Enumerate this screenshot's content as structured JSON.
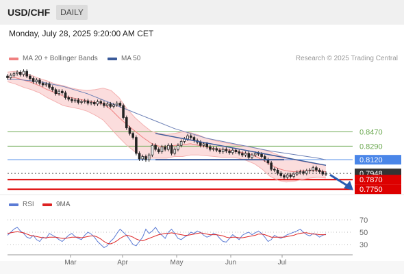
{
  "header": {
    "symbol": "USD/CHF",
    "timeframe": "DAILY"
  },
  "datetime": "Monday, July 28, 2025 9:20:00 AM CET",
  "legend": {
    "bb": {
      "label": "MA 20 + Bollinger Bands",
      "color": "#f08080"
    },
    "ma50": {
      "label": "MA 50",
      "color": "#3a5a9a"
    }
  },
  "attribution": "Research © 2025 Trading Central",
  "rsi_legend": {
    "rsi": {
      "label": "RSI",
      "color": "#5b7bd5"
    },
    "ma9": {
      "label": "9MA",
      "color": "#dd2222"
    }
  },
  "chart_data": [
    {
      "type": "line",
      "title": "",
      "x_ticks": [
        "Mar",
        "Apr",
        "May",
        "Jun",
        "Jul"
      ],
      "levels": [
        {
          "value": 0.847,
          "label": "0.8470",
          "style": "green-line",
          "color": "#6aa84f"
        },
        {
          "value": 0.829,
          "label": "0.8290",
          "style": "green-line",
          "color": "#6aa84f"
        },
        {
          "value": 0.812,
          "label": "0.8120",
          "style": "blue-box",
          "color": "#4a86e8"
        },
        {
          "value": 0.7948,
          "label": "0.7948",
          "style": "dark-box",
          "color": "#333333"
        },
        {
          "value": 0.787,
          "label": "0.7870",
          "style": "red-box",
          "color": "#dd0000"
        },
        {
          "value": 0.775,
          "label": "0.7750",
          "style": "red-box",
          "color": "#dd0000"
        }
      ],
      "price_range": [
        0.77,
        0.93
      ],
      "candles_close": [
        0.915,
        0.918,
        0.92,
        0.922,
        0.919,
        0.923,
        0.917,
        0.914,
        0.91,
        0.912,
        0.908,
        0.906,
        0.907,
        0.903,
        0.9,
        0.895,
        0.898,
        0.896,
        0.89,
        0.888,
        0.886,
        0.887,
        0.884,
        0.885,
        0.886,
        0.883,
        0.884,
        0.882,
        0.885,
        0.883,
        0.88,
        0.882,
        0.879,
        0.881,
        0.883,
        0.88,
        0.865,
        0.852,
        0.845,
        0.84,
        0.82,
        0.813,
        0.816,
        0.812,
        0.818,
        0.83,
        0.825,
        0.822,
        0.828,
        0.825,
        0.83,
        0.82,
        0.825,
        0.83,
        0.835,
        0.838,
        0.842,
        0.84,
        0.836,
        0.834,
        0.83,
        0.832,
        0.828,
        0.825,
        0.826,
        0.824,
        0.822,
        0.825,
        0.823,
        0.821,
        0.824,
        0.822,
        0.82,
        0.818,
        0.82,
        0.815,
        0.818,
        0.82,
        0.819,
        0.816,
        0.812,
        0.808,
        0.8,
        0.799,
        0.795,
        0.792,
        0.79,
        0.793,
        0.791,
        0.794,
        0.796,
        0.797,
        0.795,
        0.798,
        0.799,
        0.802,
        0.799,
        0.797,
        0.794,
        0.7948
      ],
      "ma50": [
        0.913,
        0.913,
        0.912,
        0.911,
        0.91,
        0.908,
        0.906,
        0.904,
        0.901,
        0.898,
        0.895,
        0.891,
        0.887,
        0.883,
        0.879,
        0.875,
        0.871,
        0.867,
        0.863,
        0.859,
        0.855,
        0.851,
        0.848,
        0.845,
        0.842,
        0.839,
        0.837,
        0.835,
        0.833,
        0.831,
        0.829,
        0.827,
        0.825,
        0.823,
        0.8215,
        0.82,
        0.8185,
        0.817,
        0.8155,
        0.814,
        0.812
      ],
      "ma20": [
        0.916,
        0.915,
        0.912,
        0.909,
        0.905,
        0.9,
        0.896,
        0.892,
        0.89,
        0.888,
        0.886,
        0.884,
        0.882,
        0.875,
        0.865,
        0.856,
        0.848,
        0.84,
        0.833,
        0.829,
        0.828,
        0.83,
        0.831,
        0.832,
        0.83,
        0.828,
        0.826,
        0.825,
        0.824,
        0.822,
        0.82,
        0.817,
        0.812,
        0.806,
        0.801,
        0.798,
        0.797,
        0.798,
        0.7985,
        0.798,
        0.797
      ],
      "bb_upper": [
        0.922,
        0.923,
        0.921,
        0.918,
        0.914,
        0.911,
        0.907,
        0.905,
        0.902,
        0.9,
        0.899,
        0.9,
        0.902,
        0.899,
        0.89,
        0.876,
        0.865,
        0.856,
        0.848,
        0.845,
        0.844,
        0.845,
        0.847,
        0.846,
        0.843,
        0.839,
        0.836,
        0.834,
        0.832,
        0.83,
        0.829,
        0.827,
        0.825,
        0.822,
        0.818,
        0.815,
        0.812,
        0.81,
        0.808,
        0.806,
        0.805
      ],
      "bb_lower": [
        0.91,
        0.907,
        0.903,
        0.9,
        0.896,
        0.89,
        0.885,
        0.88,
        0.878,
        0.876,
        0.873,
        0.868,
        0.862,
        0.851,
        0.84,
        0.83,
        0.822,
        0.816,
        0.814,
        0.814,
        0.814,
        0.816,
        0.816,
        0.818,
        0.818,
        0.817,
        0.816,
        0.815,
        0.815,
        0.814,
        0.811,
        0.807,
        0.8,
        0.791,
        0.786,
        0.784,
        0.785,
        0.787,
        0.789,
        0.79,
        0.789
      ],
      "trendlines": [
        {
          "description": "descending resistance",
          "from": 0.845,
          "to": 0.805
        },
        {
          "description": "support",
          "from": 0.812,
          "to": 0.812
        }
      ]
    },
    {
      "type": "line",
      "title": "",
      "y_ticks": [
        "70",
        "50",
        "30"
      ],
      "ylim": [
        20,
        80
      ],
      "rsi": [
        45,
        50,
        55,
        58,
        52,
        48,
        42,
        40,
        45,
        38,
        35,
        42,
        40,
        48,
        45,
        42,
        38,
        35,
        40,
        45,
        48,
        43,
        40,
        38,
        45,
        50,
        47,
        42,
        35,
        30,
        25,
        28,
        35,
        40,
        48,
        55,
        50,
        45,
        38,
        30,
        28,
        35,
        42,
        55,
        48,
        52,
        58,
        50,
        45,
        40,
        50,
        55,
        48,
        40,
        38,
        42,
        45,
        50,
        48,
        52,
        50,
        45,
        42,
        44,
        48,
        46,
        40,
        35,
        34,
        40,
        46,
        42,
        38,
        45,
        48,
        50,
        46,
        49,
        52,
        48,
        42,
        35,
        38,
        45,
        42,
        40,
        43,
        46,
        48,
        50,
        52,
        55,
        50,
        46,
        44,
        48,
        46,
        42,
        45,
        47
      ],
      "ma9": [
        48,
        49,
        50,
        51,
        50,
        49,
        47,
        45,
        44,
        43,
        42,
        41,
        41,
        42,
        42,
        42,
        41,
        40,
        40,
        41,
        42,
        42,
        42,
        41,
        42,
        43,
        44,
        44,
        42,
        39,
        35,
        32,
        31,
        33,
        36,
        40,
        43,
        45,
        44,
        42,
        39,
        37,
        36,
        38,
        40,
        42,
        44,
        46,
        47,
        48,
        48,
        49,
        48,
        47,
        46,
        45,
        45,
        46,
        47,
        48,
        49,
        48,
        47,
        46,
        46,
        46,
        45,
        44,
        42,
        41,
        42,
        42,
        41,
        41,
        42,
        43,
        44,
        45,
        47,
        47,
        46,
        44,
        42,
        42,
        42,
        42,
        42,
        43,
        44,
        45,
        47,
        48,
        49,
        49,
        48,
        47,
        47,
        46,
        46,
        46
      ]
    }
  ]
}
